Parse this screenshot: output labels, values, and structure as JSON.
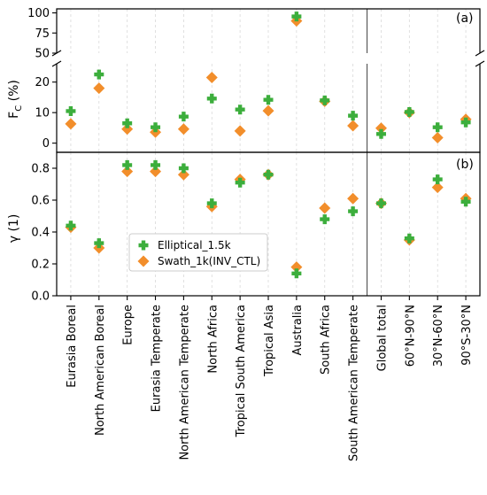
{
  "chart_data": {
    "type": "scatter",
    "categories": [
      "Eurasia Boreal",
      "North American Boreal",
      "Europe",
      "Eurasia Temperate",
      "North American Temperate",
      "North Africa",
      "Tropical South America",
      "Tropical Asia",
      "Australia",
      "South Africa",
      "South American Temperate",
      "Global total",
      "60°N-90°N",
      "30°N-60°N",
      "90°S-30°N"
    ],
    "series": [
      {
        "name": "Elliptical_1.5k",
        "marker": "plus",
        "color": "#3cae3c",
        "fc": [
          10.5,
          22.5,
          6.5,
          5.2,
          8.7,
          14.6,
          11.0,
          14.2,
          95.5,
          14.0,
          9.0,
          3.0,
          10.2,
          5.2,
          6.8
        ],
        "gamma": [
          0.44,
          0.33,
          0.82,
          0.82,
          0.8,
          0.58,
          0.71,
          0.76,
          0.14,
          0.48,
          0.53,
          0.58,
          0.36,
          0.73,
          0.59
        ]
      },
      {
        "name": "Swath_1k(INV_CTL)",
        "marker": "diamond",
        "color": "#f28e2b",
        "fc": [
          6.3,
          18.0,
          4.6,
          3.6,
          4.6,
          21.5,
          4.0,
          10.6,
          90.0,
          13.7,
          5.7,
          4.9,
          10.0,
          1.8,
          7.8
        ],
        "gamma": [
          0.43,
          0.3,
          0.78,
          0.78,
          0.76,
          0.56,
          0.73,
          0.76,
          0.18,
          0.55,
          0.61,
          0.58,
          0.35,
          0.68,
          0.61
        ]
      }
    ],
    "panel_a": {
      "label": "(a)",
      "ylabel": "F",
      "ylabel_sub": "C",
      "ylabel_unit": " (%)",
      "upper_ylim": [
        50,
        105
      ],
      "upper_yticks": [
        50,
        75,
        100
      ],
      "lower_ylim": [
        -3,
        26
      ],
      "lower_yticks": [
        0,
        10,
        20
      ]
    },
    "panel_b": {
      "label": "(b)",
      "ylabel": "γ (1)",
      "ylim": [
        0,
        0.9
      ],
      "yticks": [
        "0.0",
        "0.2",
        "0.4",
        "0.6",
        "0.8"
      ]
    },
    "divider_after_index": 10,
    "grid": "vertical-dashed",
    "legend_position": "center-left of panel (b)"
  }
}
